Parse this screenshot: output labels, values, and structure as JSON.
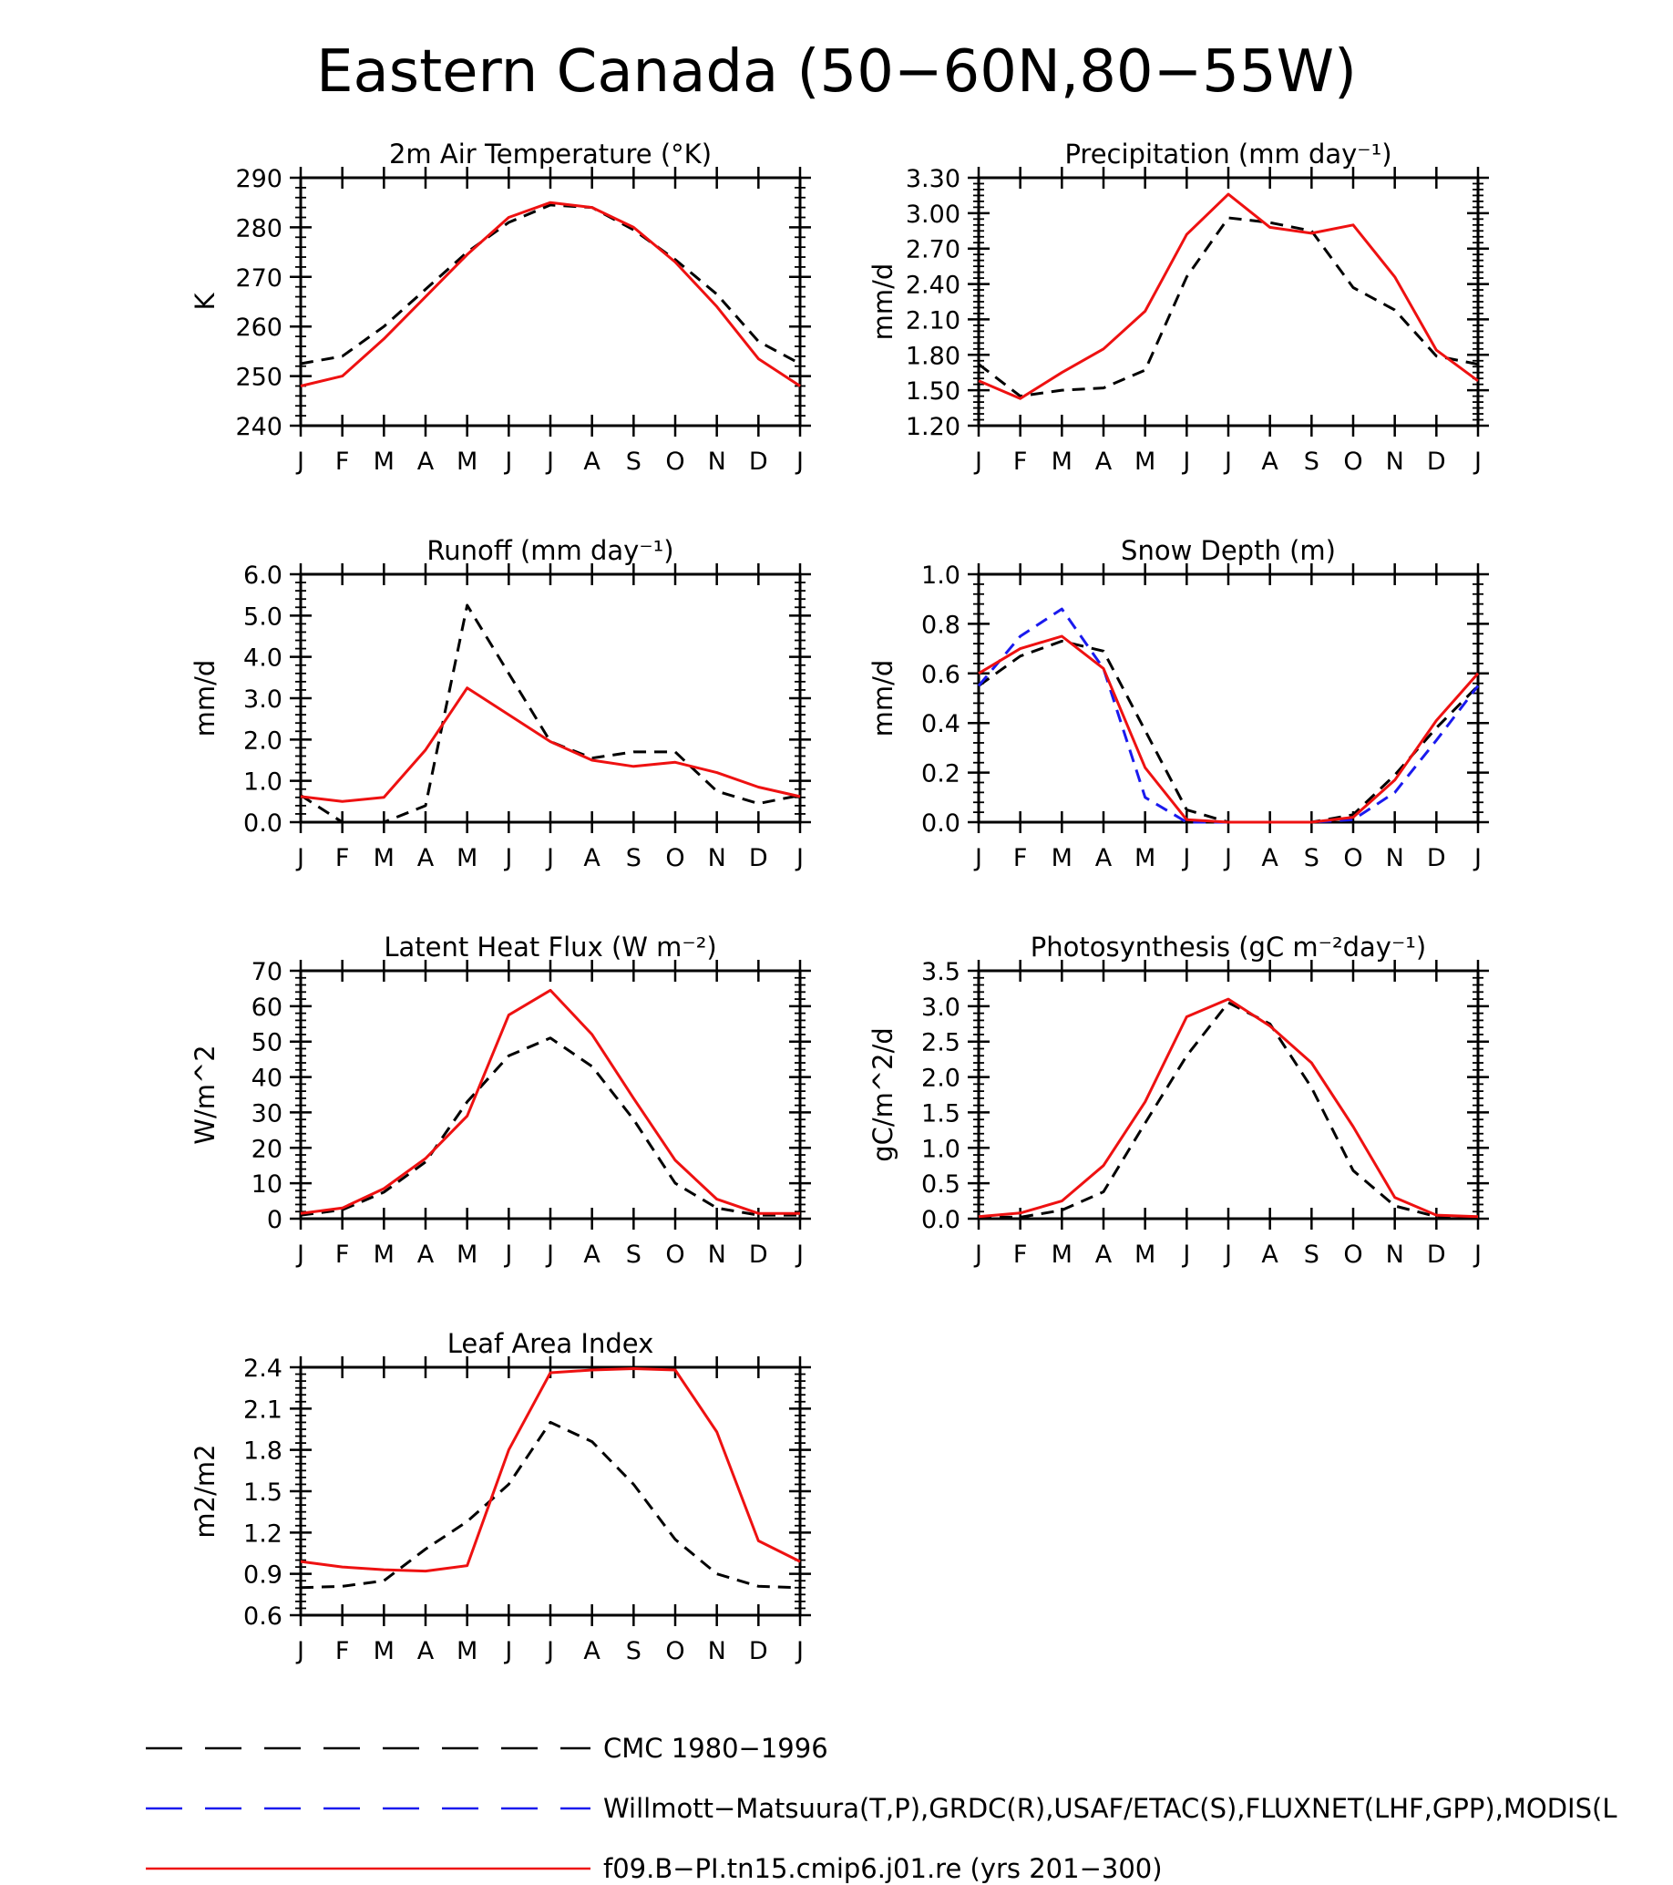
{
  "figure": {
    "title": "Eastern Canada (50−60N,80−55W)"
  },
  "legend": [
    {
      "label": "CMC 1980−1996",
      "color": "#000000",
      "dash": "dashed"
    },
    {
      "label": "Willmott−Matsuura(T,P),GRDC(R),USAF/ETAC(S),FLUXNET(LHF,GPP),MODIS(L",
      "color": "#1a1aee",
      "dash": "dashed"
    },
    {
      "label": "f09.B−PI.tn15.cmip6.j01.re (yrs 201−300)",
      "color": "#ee1111",
      "dash": "solid"
    }
  ],
  "chart_data": [
    {
      "type": "line",
      "title": "2m Air Temperature (°K)",
      "ylabel": "K",
      "categories": [
        "J",
        "F",
        "M",
        "A",
        "M",
        "J",
        "J",
        "A",
        "S",
        "O",
        "N",
        "D",
        "J"
      ],
      "ylim": [
        240,
        290
      ],
      "yticks": [
        240,
        250,
        260,
        270,
        280,
        290
      ],
      "yticklabels": [
        "240",
        "250",
        "260",
        "270",
        "280",
        "290"
      ],
      "yminor": 4,
      "series": [
        {
          "name": "CMC 1980−1996",
          "color": "#000000",
          "dash": "dashed",
          "values": [
            252.5,
            254,
            260,
            267.5,
            275,
            281,
            284.5,
            284,
            279.5,
            273.5,
            266.5,
            257,
            252.5
          ]
        },
        {
          "name": "f09.B−PI.tn15.cmip6.j01.re (yrs 201−300)",
          "color": "#ee1111",
          "dash": "solid",
          "values": [
            248,
            250,
            257.5,
            266,
            274.5,
            282,
            285,
            284,
            280,
            273,
            264,
            253.5,
            248
          ]
        }
      ]
    },
    {
      "type": "line",
      "title": "Precipitation (mm day⁻¹)",
      "ylabel": "mm/d",
      "categories": [
        "J",
        "F",
        "M",
        "A",
        "M",
        "J",
        "J",
        "A",
        "S",
        "O",
        "N",
        "D",
        "J"
      ],
      "ylim": [
        1.2,
        3.3
      ],
      "yticks": [
        1.2,
        1.5,
        1.8,
        2.1,
        2.4,
        2.7,
        3.0,
        3.3
      ],
      "yticklabels": [
        "1.20",
        "1.50",
        "1.80",
        "2.10",
        "2.40",
        "2.70",
        "3.00",
        "3.30"
      ],
      "yminor": 5,
      "series": [
        {
          "name": "CMC 1980−1996",
          "color": "#000000",
          "dash": "dashed",
          "values": [
            1.72,
            1.45,
            1.5,
            1.52,
            1.67,
            2.46,
            2.96,
            2.92,
            2.85,
            2.37,
            2.18,
            1.79,
            1.72
          ]
        },
        {
          "name": "f09.B−PI.tn15.cmip6.j01.re (yrs 201−300)",
          "color": "#ee1111",
          "dash": "solid",
          "values": [
            1.58,
            1.43,
            1.65,
            1.85,
            2.17,
            2.82,
            3.16,
            2.88,
            2.83,
            2.9,
            2.46,
            1.84,
            1.58
          ]
        }
      ]
    },
    {
      "type": "line",
      "title": "Runoff (mm day⁻¹)",
      "ylabel": "mm/d",
      "categories": [
        "J",
        "F",
        "M",
        "A",
        "M",
        "J",
        "J",
        "A",
        "S",
        "O",
        "N",
        "D",
        "J"
      ],
      "ylim": [
        0,
        6
      ],
      "yticks": [
        0,
        1,
        2,
        3,
        4,
        5,
        6
      ],
      "yticklabels": [
        "0.0",
        "1.0",
        "2.0",
        "3.0",
        "4.0",
        "5.0",
        "6.0"
      ],
      "yminor": 4,
      "series": [
        {
          "name": "CMC 1980−1996",
          "color": "#000000",
          "dash": "dashed",
          "values": [
            0.65,
            0.0,
            0.0,
            0.4,
            5.25,
            3.6,
            1.95,
            1.55,
            1.7,
            1.7,
            0.75,
            0.45,
            0.65
          ]
        },
        {
          "name": "f09.B−PI.tn15.cmip6.j01.re (yrs 201−300)",
          "color": "#ee1111",
          "dash": "solid",
          "values": [
            0.62,
            0.5,
            0.6,
            1.75,
            3.25,
            2.6,
            1.95,
            1.5,
            1.35,
            1.45,
            1.2,
            0.85,
            0.62
          ]
        }
      ]
    },
    {
      "type": "line",
      "title": "Snow Depth (m)",
      "ylabel": "mm/d",
      "categories": [
        "J",
        "F",
        "M",
        "A",
        "M",
        "J",
        "J",
        "A",
        "S",
        "O",
        "N",
        "D",
        "J"
      ],
      "ylim": [
        0,
        1
      ],
      "yticks": [
        0,
        0.2,
        0.4,
        0.6,
        0.8,
        1.0
      ],
      "yticklabels": [
        "0.0",
        "0.2",
        "0.4",
        "0.6",
        "0.8",
        "1.0"
      ],
      "yminor": 4,
      "series": [
        {
          "name": "CMC 1980−1996",
          "color": "#000000",
          "dash": "dashed",
          "values": [
            0.55,
            0.67,
            0.73,
            0.69,
            0.37,
            0.05,
            0.0,
            0.0,
            0.0,
            0.03,
            0.19,
            0.38,
            0.55
          ]
        },
        {
          "name": "Willmott−Matsuura(T,P),GRDC(R),USAF/ETAC(S),FLUXNET(LHF,GPP),MODIS(L",
          "color": "#1a1aee",
          "dash": "dashed",
          "values": [
            0.55,
            0.75,
            0.86,
            0.62,
            0.1,
            0.0,
            0.0,
            0.0,
            0.0,
            0.01,
            0.12,
            0.33,
            0.55
          ]
        },
        {
          "name": "f09.B−PI.tn15.cmip6.j01.re (yrs 201−300)",
          "color": "#ee1111",
          "dash": "solid",
          "values": [
            0.6,
            0.7,
            0.75,
            0.62,
            0.22,
            0.01,
            0.0,
            0.0,
            0.0,
            0.02,
            0.17,
            0.41,
            0.6
          ]
        }
      ]
    },
    {
      "type": "line",
      "title": "Latent Heat Flux (W m⁻²)",
      "ylabel": "W/m^2",
      "categories": [
        "J",
        "F",
        "M",
        "A",
        "M",
        "J",
        "J",
        "A",
        "S",
        "O",
        "N",
        "D",
        "J"
      ],
      "ylim": [
        0,
        70
      ],
      "yticks": [
        0,
        10,
        20,
        30,
        40,
        50,
        60,
        70
      ],
      "yticklabels": [
        "0",
        "10",
        "20",
        "30",
        "40",
        "50",
        "60",
        "70"
      ],
      "yminor": 4,
      "series": [
        {
          "name": "CMC 1980−1996",
          "color": "#000000",
          "dash": "dashed",
          "values": [
            1,
            2.5,
            7.5,
            16,
            33,
            46,
            51,
            43,
            28,
            10,
            3,
            1,
            1
          ]
        },
        {
          "name": "f09.B−PI.tn15.cmip6.j01.re (yrs 201−300)",
          "color": "#ee1111",
          "dash": "solid",
          "values": [
            1.5,
            3,
            8.5,
            17,
            29,
            57.5,
            64.5,
            52,
            34,
            16.5,
            5.5,
            1.5,
            1.5
          ]
        }
      ]
    },
    {
      "type": "line",
      "title": "Photosynthesis (gC m⁻²day⁻¹)",
      "ylabel": "gC/m^2/d",
      "categories": [
        "J",
        "F",
        "M",
        "A",
        "M",
        "J",
        "J",
        "A",
        "S",
        "O",
        "N",
        "D",
        "J"
      ],
      "ylim": [
        0,
        3.5
      ],
      "yticks": [
        0,
        0.5,
        1.0,
        1.5,
        2.0,
        2.5,
        3.0,
        3.5
      ],
      "yticklabels": [
        "0.0",
        "0.5",
        "1.0",
        "1.5",
        "2.0",
        "2.5",
        "3.0",
        "3.5"
      ],
      "yminor": 4,
      "series": [
        {
          "name": "CMC 1980−1996",
          "color": "#000000",
          "dash": "dashed",
          "values": [
            0.02,
            0.02,
            0.12,
            0.38,
            1.35,
            2.3,
            3.05,
            2.75,
            1.85,
            0.68,
            0.18,
            0.03,
            0.02
          ]
        },
        {
          "name": "f09.B−PI.tn15.cmip6.j01.re (yrs 201−300)",
          "color": "#ee1111",
          "dash": "solid",
          "values": [
            0.03,
            0.08,
            0.25,
            0.75,
            1.65,
            2.85,
            3.1,
            2.72,
            2.2,
            1.3,
            0.3,
            0.05,
            0.03
          ]
        }
      ]
    },
    {
      "type": "line",
      "title": "Leaf Area Index",
      "ylabel": "m2/m2",
      "categories": [
        "J",
        "F",
        "M",
        "A",
        "M",
        "J",
        "J",
        "A",
        "S",
        "O",
        "N",
        "D",
        "J"
      ],
      "ylim": [
        0.6,
        2.4
      ],
      "yticks": [
        0.6,
        0.9,
        1.2,
        1.5,
        1.8,
        2.1,
        2.4
      ],
      "yticklabels": [
        "0.6",
        "0.9",
        "1.2",
        "1.5",
        "1.8",
        "2.1",
        "2.4"
      ],
      "yminor": 5,
      "series": [
        {
          "name": "CMC 1980−1996",
          "color": "#000000",
          "dash": "dashed",
          "values": [
            0.8,
            0.81,
            0.85,
            1.08,
            1.28,
            1.55,
            2.0,
            1.86,
            1.55,
            1.15,
            0.9,
            0.81,
            0.8
          ]
        },
        {
          "name": "f09.B−PI.tn15.cmip6.j01.re (yrs 201−300)",
          "color": "#ee1111",
          "dash": "solid",
          "values": [
            0.99,
            0.95,
            0.93,
            0.92,
            0.96,
            1.8,
            2.36,
            2.38,
            2.39,
            2.38,
            1.93,
            1.14,
            0.99
          ]
        }
      ]
    }
  ]
}
